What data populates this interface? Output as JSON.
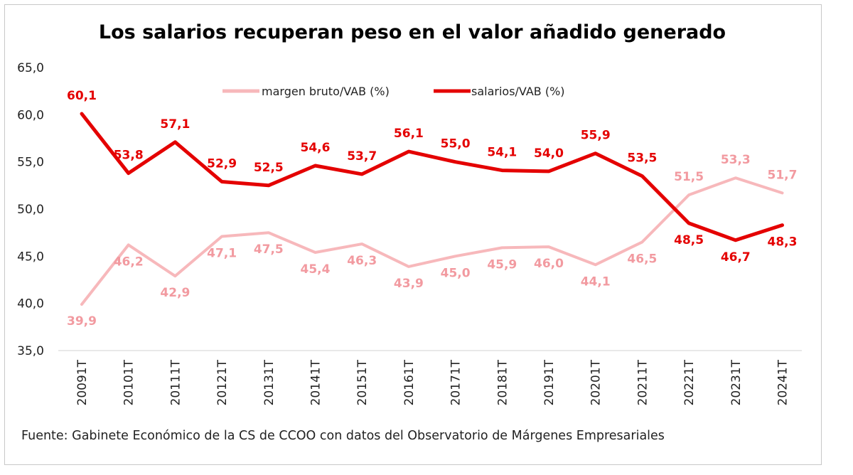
{
  "chart_data": {
    "type": "line",
    "title": "Los salarios recuperan peso en el valor añadido generado",
    "source": "Fuente: Gabinete Económico de la CS de CCOO con datos del Observatorio de Márgenes Empresariales",
    "categories": [
      "20091T",
      "20101T",
      "20111T",
      "20121T",
      "20131T",
      "20141T",
      "20151T",
      "20161T",
      "20171T",
      "20181T",
      "20191T",
      "20201T",
      "20211T",
      "20221T",
      "20231T",
      "20241T"
    ],
    "ylim": [
      35,
      65
    ],
    "yticks": [
      "35,0",
      "40,0",
      "45,0",
      "50,0",
      "55,0",
      "60,0",
      "65,0"
    ],
    "ytick_values": [
      35,
      40,
      45,
      50,
      55,
      60,
      65
    ],
    "legend_position": "top-center",
    "grid": false,
    "series": [
      {
        "name": "margen bruto/VAB (%)",
        "color": "#f7b8bb",
        "label_color": "#f29aa0",
        "values": [
          39.9,
          46.2,
          42.9,
          47.1,
          47.5,
          45.4,
          46.3,
          43.9,
          45.0,
          45.9,
          46.0,
          44.1,
          46.5,
          51.5,
          53.3,
          51.7
        ],
        "labels": [
          "39,9",
          "46,2",
          "42,9",
          "47,1",
          "47,5",
          "45,4",
          "46,3",
          "43,9",
          "45,0",
          "45,9",
          "46,0",
          "44,1",
          "46,5",
          "51,5",
          "53,3",
          "51,7"
        ]
      },
      {
        "name": "salarios/VAB (%)",
        "color": "#e40000",
        "label_color": "#e40000",
        "values": [
          60.1,
          53.8,
          57.1,
          52.9,
          52.5,
          54.6,
          53.7,
          56.1,
          55.0,
          54.1,
          54.0,
          55.9,
          53.5,
          48.5,
          46.7,
          48.3
        ],
        "labels": [
          "60,1",
          "53,8",
          "57,1",
          "52,9",
          "52,5",
          "54,6",
          "53,7",
          "56,1",
          "55,0",
          "54,1",
          "54,0",
          "55,9",
          "53,5",
          "48,5",
          "46,7",
          "48,3"
        ]
      }
    ]
  }
}
